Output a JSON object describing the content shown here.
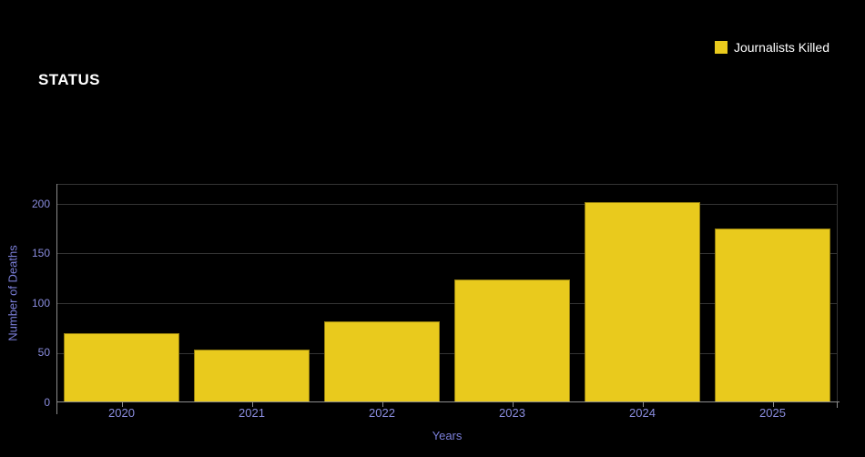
{
  "page": {
    "title": "STATUS"
  },
  "legend": {
    "items": [
      {
        "label": "Journalists Killed",
        "color": "#E9CA1D"
      }
    ]
  },
  "chart_data": {
    "type": "bar",
    "title": "STATUS",
    "categories": [
      "2020",
      "2021",
      "2022",
      "2023",
      "2024",
      "2025"
    ],
    "series": [
      {
        "name": "Journalists Killed",
        "values": [
          70,
          53,
          82,
          124,
          202,
          175
        ],
        "color": "#E9CA1D"
      }
    ],
    "xlabel": "Years",
    "ylabel": "Number of Deaths",
    "yticks": [
      0,
      50,
      100,
      150,
      200
    ],
    "ylim": [
      0,
      220
    ],
    "grid": true,
    "legend_position": "top-right",
    "colors": {
      "background": "#000000",
      "bar": "#E9CA1D",
      "grid": "#343434",
      "axis": "#8C8C8C",
      "tick_label": "#8A8DDF",
      "axis_title": "#7B7FD9",
      "text": "#FFFFFF"
    }
  }
}
